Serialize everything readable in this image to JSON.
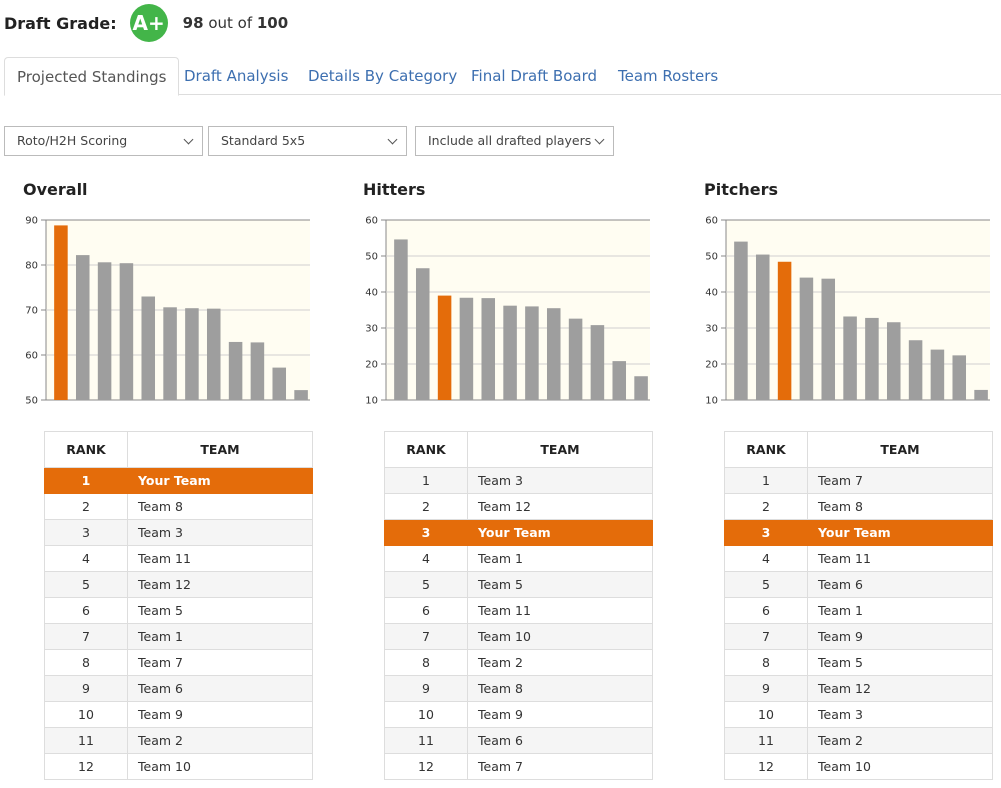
{
  "grade": {
    "label": "Draft Grade:",
    "badge": "A+",
    "score": "98",
    "out_of_text": " out of ",
    "max": "100",
    "badge_color": "#43b549"
  },
  "tabs": [
    {
      "label": "Projected Standings",
      "active": true
    },
    {
      "label": "Draft Analysis",
      "active": false
    },
    {
      "label": "Details By Category",
      "active": false
    },
    {
      "label": "Final Draft Board",
      "active": false
    },
    {
      "label": "Team Rosters",
      "active": false
    }
  ],
  "filters": {
    "scoring": "Roto/H2H Scoring",
    "format": "Standard 5x5",
    "players": "Include all drafted players"
  },
  "colors": {
    "highlight": "#e46c0a",
    "bar_default": "#9e9e9e",
    "plot_bg": "#fffdf2",
    "link": "#3d6fb0"
  },
  "table_headers": {
    "rank": "RANK",
    "team": "TEAM"
  },
  "sections": [
    {
      "title": "Overall",
      "chart_data": {
        "type": "bar",
        "yticks": [
          50,
          60,
          70,
          80,
          90
        ],
        "ylim": [
          50,
          90
        ],
        "values": [
          88.8,
          82.2,
          80.6,
          80.4,
          73.0,
          70.6,
          70.4,
          70.3,
          62.9,
          62.8,
          57.2,
          52.2
        ],
        "highlight_index": 0
      },
      "rows": [
        {
          "rank": "1",
          "team": "Your Team",
          "highlight": true
        },
        {
          "rank": "2",
          "team": "Team 8"
        },
        {
          "rank": "3",
          "team": "Team 3"
        },
        {
          "rank": "4",
          "team": "Team 11"
        },
        {
          "rank": "5",
          "team": "Team 12"
        },
        {
          "rank": "6",
          "team": "Team 5"
        },
        {
          "rank": "7",
          "team": "Team 1"
        },
        {
          "rank": "8",
          "team": "Team 7"
        },
        {
          "rank": "9",
          "team": "Team 6"
        },
        {
          "rank": "10",
          "team": "Team 9"
        },
        {
          "rank": "11",
          "team": "Team 2"
        },
        {
          "rank": "12",
          "team": "Team 10"
        }
      ]
    },
    {
      "title": "Hitters",
      "chart_data": {
        "type": "bar",
        "yticks": [
          10,
          20,
          30,
          40,
          50,
          60
        ],
        "ylim": [
          10,
          60
        ],
        "values": [
          54.6,
          46.6,
          39.0,
          38.4,
          38.3,
          36.2,
          36.0,
          35.5,
          32.6,
          30.8,
          20.8,
          16.6
        ],
        "highlight_index": 2
      },
      "rows": [
        {
          "rank": "1",
          "team": "Team 3"
        },
        {
          "rank": "2",
          "team": "Team 12"
        },
        {
          "rank": "3",
          "team": "Your Team",
          "highlight": true
        },
        {
          "rank": "4",
          "team": "Team 1"
        },
        {
          "rank": "5",
          "team": "Team 5"
        },
        {
          "rank": "6",
          "team": "Team 11"
        },
        {
          "rank": "7",
          "team": "Team 10"
        },
        {
          "rank": "8",
          "team": "Team 2"
        },
        {
          "rank": "9",
          "team": "Team 8"
        },
        {
          "rank": "10",
          "team": "Team 9"
        },
        {
          "rank": "11",
          "team": "Team 6"
        },
        {
          "rank": "12",
          "team": "Team 7"
        }
      ]
    },
    {
      "title": "Pitchers",
      "chart_data": {
        "type": "bar",
        "yticks": [
          10,
          20,
          30,
          40,
          50,
          60
        ],
        "ylim": [
          10,
          60
        ],
        "values": [
          54.0,
          50.4,
          48.4,
          44.0,
          43.7,
          33.2,
          32.8,
          31.6,
          26.6,
          24.0,
          22.4,
          12.8
        ],
        "highlight_index": 2
      },
      "rows": [
        {
          "rank": "1",
          "team": "Team 7"
        },
        {
          "rank": "2",
          "team": "Team 8"
        },
        {
          "rank": "3",
          "team": "Your Team",
          "highlight": true
        },
        {
          "rank": "4",
          "team": "Team 11"
        },
        {
          "rank": "5",
          "team": "Team 6"
        },
        {
          "rank": "6",
          "team": "Team 1"
        },
        {
          "rank": "7",
          "team": "Team 9"
        },
        {
          "rank": "8",
          "team": "Team 5"
        },
        {
          "rank": "9",
          "team": "Team 12"
        },
        {
          "rank": "10",
          "team": "Team 3"
        },
        {
          "rank": "11",
          "team": "Team 2"
        },
        {
          "rank": "12",
          "team": "Team 10"
        }
      ]
    }
  ]
}
